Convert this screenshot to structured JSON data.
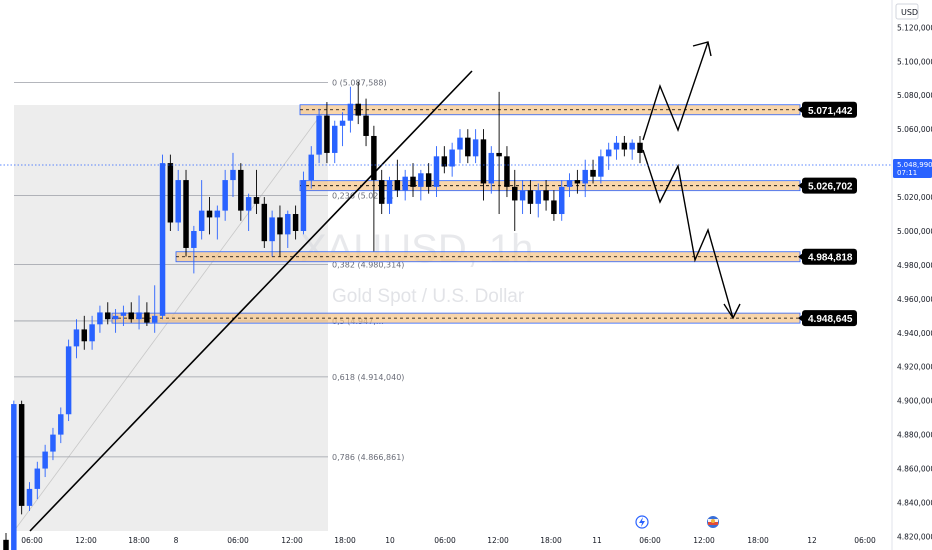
{
  "currency": "USD",
  "watermark": {
    "symbol": "XAUUSD, 1h",
    "name": "Gold Spot / U.S. Dollar"
  },
  "current_price": {
    "value": "5.048,990",
    "countdown": "07:11"
  },
  "colors": {
    "bull": "#2962ff",
    "bear": "#000000",
    "zone_fill": "#f7c488",
    "zone_border": "#2962ff",
    "fib_bg": "#ededed",
    "axis_text": "#131722"
  },
  "icons": [
    "lightning-icon",
    "flag-icon"
  ],
  "chart_data": {
    "type": "candlestick",
    "timeframe": "1h",
    "y_axis": {
      "range": [
        4812,
        5132
      ],
      "ticks": [
        "4.820,000",
        "4.840,000",
        "4.860,000",
        "4.880,000",
        "4.900,000",
        "4.920,000",
        "4.940,000",
        "4.960,000",
        "4.980,000",
        "5.000,000",
        "5.020,000",
        "5.040,000",
        "5.060,000",
        "5.080,000",
        "5.100,000",
        "5.120,000"
      ]
    },
    "x_axis": {
      "ticks": [
        "06:00",
        "12:00",
        "18:00",
        "8",
        "06:00",
        "12:00",
        "18:00",
        "10",
        "06:00",
        "12:00",
        "18:00",
        "11",
        "06:00",
        "12:00",
        "18:00",
        "12",
        "06:00"
      ]
    },
    "fibonacci": [
      {
        "ratio": "0",
        "price": 5087.588,
        "label": "0 (5.087,588)"
      },
      {
        "ratio": "0.236",
        "price": 5021.0,
        "label": "0,236 (5.021,…"
      },
      {
        "ratio": "0.382",
        "price": 4980.314,
        "label": "0,382 (4.980,314)"
      },
      {
        "ratio": "0.5",
        "price": 4947.0,
        "label": "0,5 (4.947,…"
      },
      {
        "ratio": "0.618",
        "price": 4914.04,
        "label": "0,618 (4.914,040)"
      },
      {
        "ratio": "0.786",
        "price": 4866.861,
        "label": "0,786 (4.866,861)"
      }
    ],
    "levels": [
      {
        "price": 5071.442,
        "label": "5.071,442"
      },
      {
        "price": 5026.702,
        "label": "5.026,702"
      },
      {
        "price": 4984.818,
        "label": "4.984,818"
      },
      {
        "price": 4948.645,
        "label": "4.948,645"
      }
    ],
    "candles": [
      [
        4818,
        4822,
        4812,
        4812
      ],
      [
        4812,
        4900,
        4812,
        4898
      ],
      [
        4898,
        4900,
        4833,
        4838
      ],
      [
        4838,
        4852,
        4835,
        4848
      ],
      [
        4848,
        4864,
        4842,
        4860
      ],
      [
        4860,
        4874,
        4855,
        4870
      ],
      [
        4870,
        4884,
        4865,
        4880
      ],
      [
        4880,
        4896,
        4875,
        4892
      ],
      [
        4892,
        4936,
        4888,
        4932
      ],
      [
        4932,
        4948,
        4925,
        4942
      ],
      [
        4942,
        4950,
        4930,
        4935
      ],
      [
        4935,
        4950,
        4930,
        4945
      ],
      [
        4945,
        4956,
        4940,
        4952
      ],
      [
        4952,
        4958,
        4945,
        4948
      ],
      [
        4948,
        4954,
        4940,
        4950
      ],
      [
        4950,
        4956,
        4944,
        4952
      ],
      [
        4952,
        4958,
        4946,
        4948
      ],
      [
        4948,
        4962,
        4942,
        4952
      ],
      [
        4952,
        4958,
        4944,
        4946
      ],
      [
        4946,
        4968,
        4940,
        4950
      ],
      [
        4950,
        5045,
        4948,
        5040
      ],
      [
        5040,
        5045,
        5000,
        5005
      ],
      [
        5005,
        5036,
        5000,
        5030
      ],
      [
        5030,
        5036,
        4985,
        4990
      ],
      [
        4990,
        5003,
        4975,
        5000
      ],
      [
        5000,
        5030,
        4995,
        5012
      ],
      [
        5012,
        5020,
        4998,
        5008
      ],
      [
        5008,
        5015,
        4995,
        5012
      ],
      [
        5012,
        5036,
        5006,
        5030
      ],
      [
        5030,
        5046,
        5020,
        5036
      ],
      [
        5036,
        5040,
        5006,
        5012
      ],
      [
        5012,
        5022,
        5000,
        5020
      ],
      [
        5020,
        5036,
        5010,
        5016
      ],
      [
        5016,
        5020,
        4990,
        4994
      ],
      [
        4994,
        5012,
        4985,
        5008
      ],
      [
        5008,
        5015,
        4985,
        4998
      ],
      [
        4998,
        5012,
        4990,
        5010
      ],
      [
        5010,
        5015,
        4995,
        5000
      ],
      [
        5000,
        5035,
        4998,
        5030
      ],
      [
        5030,
        5050,
        5025,
        5045
      ],
      [
        5045,
        5072,
        5040,
        5068
      ],
      [
        5068,
        5076,
        5040,
        5046
      ],
      [
        5046,
        5065,
        5040,
        5062
      ],
      [
        5062,
        5070,
        5050,
        5065
      ],
      [
        5065,
        5085,
        5058,
        5075
      ],
      [
        5075,
        5088,
        5063,
        5068
      ],
      [
        5068,
        5078,
        5050,
        5056
      ],
      [
        5056,
        5062,
        4988,
        5030
      ],
      [
        5030,
        5036,
        5010,
        5016
      ],
      [
        5016,
        5032,
        5010,
        5030
      ],
      [
        5030,
        5042,
        5020,
        5024
      ],
      [
        5024,
        5036,
        5018,
        5032
      ],
      [
        5032,
        5040,
        5020,
        5026
      ],
      [
        5026,
        5036,
        5018,
        5034
      ],
      [
        5034,
        5040,
        5022,
        5026
      ],
      [
        5026,
        5050,
        5020,
        5044
      ],
      [
        5044,
        5050,
        5034,
        5038
      ],
      [
        5038,
        5052,
        5032,
        5048
      ],
      [
        5048,
        5060,
        5040,
        5055
      ],
      [
        5055,
        5060,
        5040,
        5044
      ],
      [
        5044,
        5060,
        5040,
        5054
      ],
      [
        5054,
        5060,
        5018,
        5028
      ],
      [
        5028,
        5050,
        5022,
        5046
      ],
      [
        5046,
        5082,
        5010,
        5044
      ],
      [
        5044,
        5050,
        5020,
        5026
      ],
      [
        5026,
        5036,
        5000,
        5018
      ],
      [
        5018,
        5030,
        5010,
        5024
      ],
      [
        5024,
        5030,
        5010,
        5016
      ],
      [
        5016,
        5028,
        5008,
        5024
      ],
      [
        5024,
        5030,
        5012,
        5018
      ],
      [
        5018,
        5024,
        5006,
        5010
      ],
      [
        5010,
        5030,
        5006,
        5026
      ],
      [
        5026,
        5034,
        5020,
        5030
      ],
      [
        5030,
        5036,
        5022,
        5028
      ],
      [
        5028,
        5042,
        5020,
        5036
      ],
      [
        5036,
        5042,
        5028,
        5032
      ],
      [
        5032,
        5048,
        5028,
        5044
      ],
      [
        5044,
        5052,
        5036,
        5048
      ],
      [
        5048,
        5056,
        5042,
        5052
      ],
      [
        5052,
        5056,
        5044,
        5048
      ],
      [
        5048,
        5054,
        5042,
        5052
      ],
      [
        5052,
        5056,
        5040,
        5046
      ]
    ]
  }
}
